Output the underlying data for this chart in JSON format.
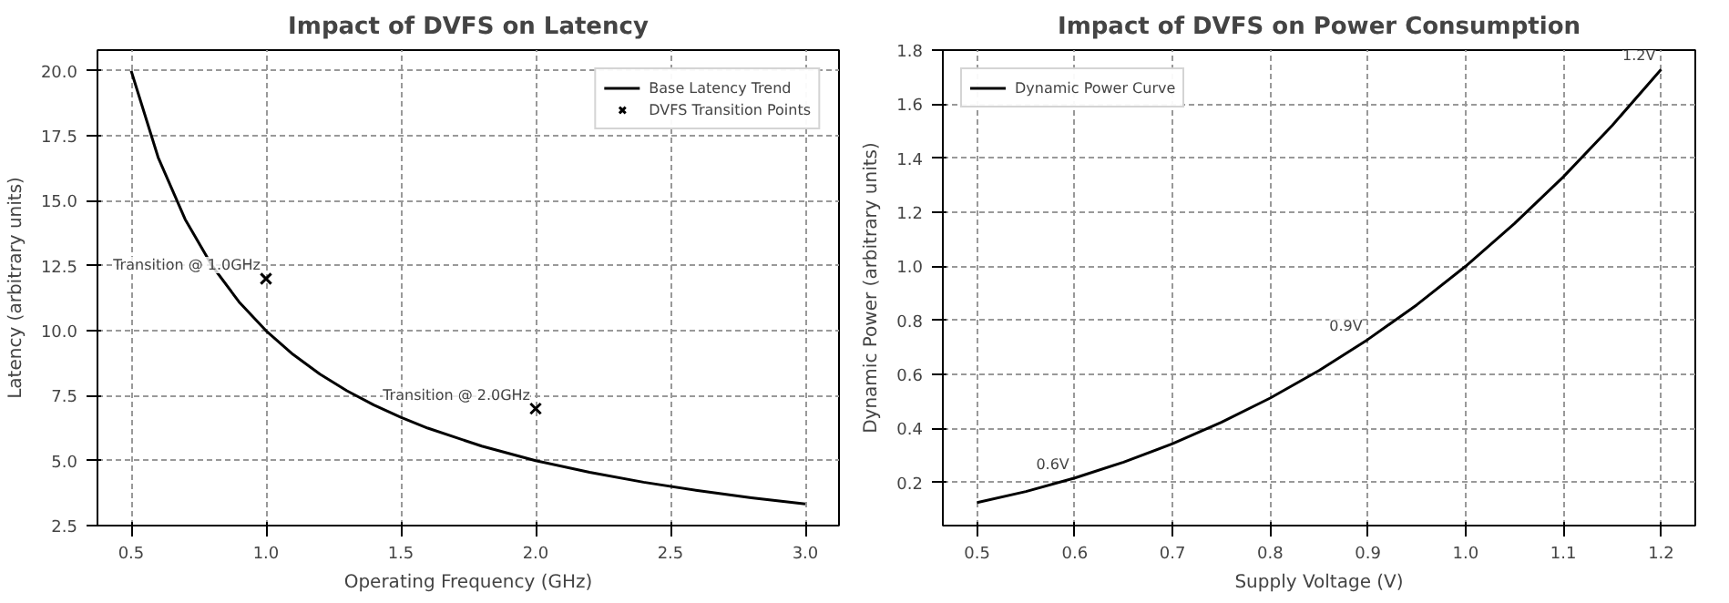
{
  "chart_data": [
    {
      "type": "line",
      "title": "Impact of DVFS on Latency",
      "xlabel": "Operating Frequency (GHz)",
      "ylabel": "Latency (arbitrary units)",
      "xlim": [
        0.375,
        3.125
      ],
      "ylim": [
        2.5,
        20.8
      ],
      "xticks": [
        0.5,
        {
          "value": 1,
          "label": "1.0"
        },
        1.5,
        {
          "value": 2,
          "label": "2.0"
        },
        2.5,
        {
          "value": 3,
          "label": "3.0"
        }
      ],
      "yticks": [
        2.5,
        {
          "value": 5,
          "label": "5.0"
        },
        7.5,
        {
          "value": 10,
          "label": "10.0"
        },
        12.5,
        {
          "value": 15,
          "label": "15.0"
        },
        17.5,
        {
          "value": 20,
          "label": "20.0"
        }
      ],
      "grid": true,
      "legend": "top right",
      "series": [
        {
          "name": "Base Latency Trend",
          "color": "#000000",
          "x": [
            0.5,
            0.6,
            0.7,
            0.8,
            0.9,
            1.0,
            1.1,
            1.2,
            1.3,
            1.4,
            1.5,
            1.6,
            1.8,
            2.0,
            2.2,
            2.4,
            2.6,
            2.8,
            3.0
          ],
          "values": [
            20.0,
            16.67,
            14.29,
            12.5,
            11.11,
            10.0,
            9.09,
            8.33,
            7.69,
            7.14,
            6.67,
            6.25,
            5.56,
            5.0,
            4.55,
            4.17,
            3.85,
            3.57,
            3.33
          ]
        },
        {
          "name": "DVFS Transition Points",
          "type": "scatter",
          "marker": "cross",
          "color": "#000000",
          "x": [
            1.0,
            2.0
          ],
          "values": [
            12.0,
            7.0
          ]
        }
      ],
      "annotations": [
        {
          "text": "Transition @ 1.0GHz",
          "x": 1.0,
          "y": 12.0
        },
        {
          "text": "Transition @ 2.0GHz",
          "x": 2.0,
          "y": 7.0
        }
      ]
    },
    {
      "type": "line",
      "title": "Impact of DVFS on Power Consumption",
      "xlabel": "Supply Voltage (V)",
      "ylabel": "Dynamic Power (arbitrary units)",
      "xlim": [
        0.465,
        1.235
      ],
      "ylim": [
        0.04,
        1.8
      ],
      "xticks": [
        0.5,
        0.6,
        0.7,
        0.8,
        0.9,
        {
          "value": 1,
          "label": "1.0"
        },
        1.1,
        1.2
      ],
      "yticks": [
        0.2,
        0.4,
        0.6,
        0.8,
        {
          "value": 1,
          "label": "1.0"
        },
        1.2,
        1.4,
        1.6,
        1.8
      ],
      "grid": true,
      "legend": "top left",
      "series": [
        {
          "name": "Dynamic Power Curve",
          "color": "#000000",
          "x": [
            0.5,
            0.55,
            0.6,
            0.65,
            0.7,
            0.75,
            0.8,
            0.85,
            0.9,
            0.95,
            1.0,
            1.05,
            1.1,
            1.15,
            1.2
          ],
          "values": [
            0.125,
            0.166,
            0.216,
            0.275,
            0.343,
            0.422,
            0.512,
            0.614,
            0.729,
            0.857,
            1.0,
            1.158,
            1.331,
            1.521,
            1.728
          ]
        }
      ],
      "annotations": [
        {
          "text": "0.6V",
          "x": 0.6,
          "y": 0.216
        },
        {
          "text": "0.9V",
          "x": 0.9,
          "y": 0.729
        },
        {
          "text": "1.2V",
          "x": 1.2,
          "y": 1.728
        }
      ]
    }
  ]
}
